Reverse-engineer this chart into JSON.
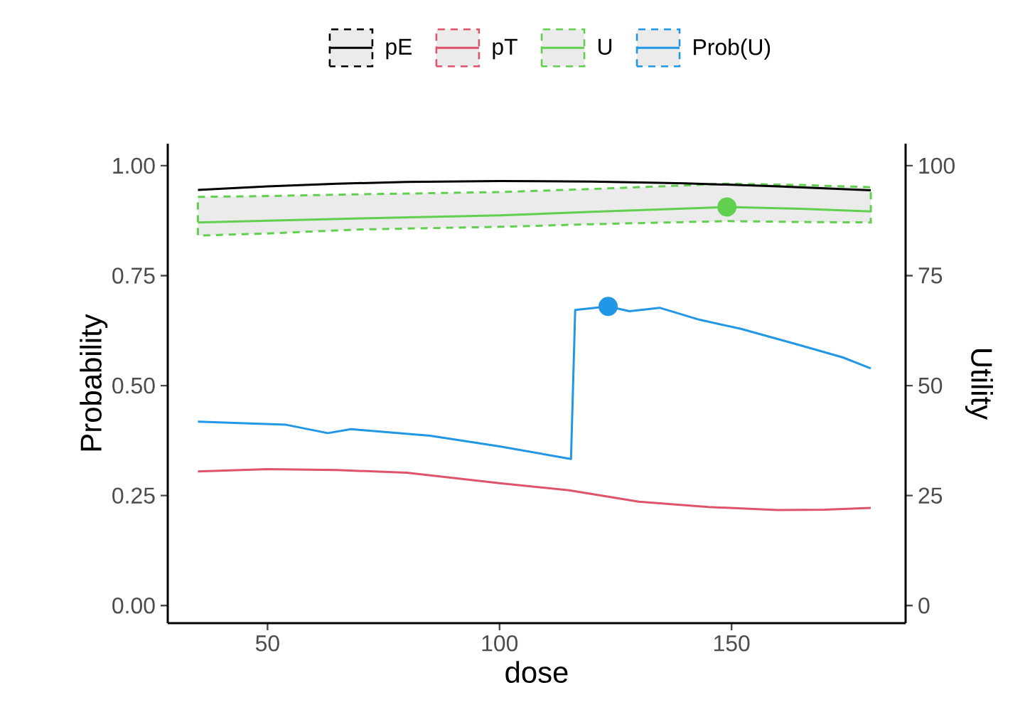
{
  "chart_data": {
    "type": "line",
    "xlabel": "dose",
    "ylabel": "Probability",
    "y2label": "Utility",
    "xlim": [
      28.5,
      187.5
    ],
    "xticks": [
      50,
      100,
      150
    ],
    "ylim": [
      -0.04,
      1.05
    ],
    "yticks": [
      {
        "value": 0,
        "label": "0.00"
      },
      {
        "value": 0.25,
        "label": "0.25"
      },
      {
        "value": 0.5,
        "label": "0.50"
      },
      {
        "value": 0.75,
        "label": "0.75"
      },
      {
        "value": 1,
        "label": "1.00"
      }
    ],
    "y2lim": [
      -4,
      105
    ],
    "y2ticks": [
      0,
      25,
      50,
      75,
      100
    ],
    "legend": "top",
    "grid": false,
    "series": [
      {
        "name": "pE",
        "color": "#000000",
        "x": [
          35,
          50,
          65,
          80,
          100,
          120,
          140,
          160,
          180
        ],
        "values": [
          0.945,
          0.953,
          0.959,
          0.963,
          0.965,
          0.964,
          0.96,
          0.953,
          0.944
        ]
      },
      {
        "name": "pT",
        "color": "#df536b",
        "x": [
          35,
          50,
          65,
          80,
          100,
          115,
          130,
          145,
          160,
          170,
          180
        ],
        "values": [
          0.305,
          0.31,
          0.308,
          0.302,
          0.278,
          0.262,
          0.236,
          0.224,
          0.217,
          0.218,
          0.222
        ]
      },
      {
        "name": "U",
        "color": "#61d04f",
        "axis": "y2",
        "x": [
          35,
          50,
          70,
          100,
          120,
          149,
          165,
          180
        ],
        "values": [
          87.1,
          87.5,
          88.0,
          88.7,
          89.5,
          90.6,
          90.2,
          89.6
        ],
        "lower": [
          84.1,
          84.6,
          85.5,
          86.1,
          86.7,
          87.4,
          87.2,
          87.1
        ],
        "upper": [
          92.9,
          93.1,
          93.5,
          94.0,
          94.7,
          95.9,
          95.6,
          95.1
        ]
      },
      {
        "name": "Prob(U)",
        "color": "#2297e6",
        "x": [
          35,
          54,
          63,
          68,
          85,
          100,
          115.4,
          116.3,
          123.4,
          128,
          134.5,
          143,
          152,
          165,
          174,
          180
        ],
        "values": [
          0.418,
          0.411,
          0.392,
          0.401,
          0.386,
          0.362,
          0.333,
          0.672,
          0.68,
          0.669,
          0.677,
          0.65,
          0.629,
          0.591,
          0.564,
          0.539
        ]
      },
      {
        "type": "scatter",
        "color": "#61d04f",
        "axis": "y2",
        "x": [
          149
        ],
        "values": [
          90.6
        ]
      },
      {
        "type": "scatter",
        "color": "#2297e6",
        "x": [
          123.4
        ],
        "values": [
          0.68
        ]
      }
    ]
  }
}
